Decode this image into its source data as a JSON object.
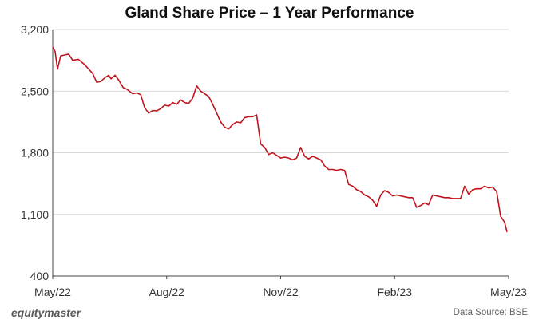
{
  "chart_data": {
    "type": "line",
    "title": "Gland Share Price – 1 Year Performance",
    "xlabel": "",
    "ylabel": "",
    "ylim": [
      400,
      3200
    ],
    "y_ticks": [
      400,
      1100,
      1800,
      2500,
      3200
    ],
    "y_tick_labels": [
      "400",
      "1,100",
      "1,800",
      "2,500",
      "3,200"
    ],
    "x_tick_labels": [
      "May/22",
      "Aug/22",
      "Nov/22",
      "Feb/23",
      "May/23"
    ],
    "grid": true,
    "legend": "none",
    "line_color": "#c0141c",
    "series": [
      {
        "values": [
          [
            0,
            3000
          ],
          [
            0.3,
            2950
          ],
          [
            0.6,
            2750
          ],
          [
            1.0,
            2900
          ],
          [
            2.0,
            2920
          ],
          [
            2.5,
            2850
          ],
          [
            3.2,
            2860
          ],
          [
            4.0,
            2800
          ],
          [
            5.0,
            2700
          ],
          [
            5.5,
            2600
          ],
          [
            6.0,
            2610
          ],
          [
            6.5,
            2650
          ],
          [
            7.0,
            2680
          ],
          [
            7.3,
            2640
          ],
          [
            7.8,
            2680
          ],
          [
            8.3,
            2620
          ],
          [
            8.8,
            2540
          ],
          [
            9.3,
            2520
          ],
          [
            10.0,
            2470
          ],
          [
            10.5,
            2480
          ],
          [
            11.0,
            2460
          ],
          [
            11.5,
            2310
          ],
          [
            12.0,
            2250
          ],
          [
            12.5,
            2280
          ],
          [
            13.0,
            2275
          ],
          [
            13.5,
            2300
          ],
          [
            14.0,
            2340
          ],
          [
            14.5,
            2330
          ],
          [
            15.0,
            2370
          ],
          [
            15.5,
            2350
          ],
          [
            16.0,
            2400
          ],
          [
            16.5,
            2370
          ],
          [
            17.0,
            2360
          ],
          [
            17.5,
            2420
          ],
          [
            18.0,
            2560
          ],
          [
            18.5,
            2500
          ],
          [
            19.0,
            2470
          ],
          [
            19.5,
            2440
          ],
          [
            20.0,
            2350
          ],
          [
            20.5,
            2250
          ],
          [
            21.0,
            2150
          ],
          [
            21.5,
            2090
          ],
          [
            22.0,
            2070
          ],
          [
            22.5,
            2120
          ],
          [
            23.0,
            2150
          ],
          [
            23.5,
            2140
          ],
          [
            24.0,
            2200
          ],
          [
            24.5,
            2210
          ],
          [
            25.0,
            2210
          ],
          [
            25.5,
            2230
          ],
          [
            26.0,
            1900
          ],
          [
            26.5,
            1860
          ],
          [
            27.0,
            1780
          ],
          [
            27.5,
            1800
          ],
          [
            28.0,
            1770
          ],
          [
            28.5,
            1740
          ],
          [
            29.0,
            1750
          ],
          [
            29.5,
            1740
          ],
          [
            30.0,
            1720
          ],
          [
            30.5,
            1740
          ],
          [
            31.0,
            1860
          ],
          [
            31.5,
            1760
          ],
          [
            32.0,
            1730
          ],
          [
            32.5,
            1760
          ],
          [
            33.0,
            1740
          ],
          [
            33.5,
            1720
          ],
          [
            34.0,
            1650
          ],
          [
            34.5,
            1610
          ],
          [
            35.0,
            1610
          ],
          [
            35.5,
            1600
          ],
          [
            36.0,
            1610
          ],
          [
            36.5,
            1600
          ],
          [
            37.0,
            1440
          ],
          [
            37.5,
            1420
          ],
          [
            38.0,
            1380
          ],
          [
            38.5,
            1360
          ],
          [
            39.0,
            1320
          ],
          [
            39.5,
            1300
          ],
          [
            40.0,
            1260
          ],
          [
            40.5,
            1190
          ],
          [
            41.0,
            1320
          ],
          [
            41.5,
            1370
          ],
          [
            42.0,
            1350
          ],
          [
            42.5,
            1310
          ],
          [
            43.0,
            1320
          ],
          [
            43.5,
            1310
          ],
          [
            44.0,
            1300
          ],
          [
            44.5,
            1290
          ],
          [
            45.0,
            1290
          ],
          [
            45.5,
            1180
          ],
          [
            46.0,
            1200
          ],
          [
            46.5,
            1230
          ],
          [
            47.0,
            1210
          ],
          [
            47.5,
            1320
          ],
          [
            48.0,
            1310
          ],
          [
            48.5,
            1300
          ],
          [
            49.0,
            1290
          ],
          [
            49.5,
            1290
          ],
          [
            50.0,
            1280
          ],
          [
            50.5,
            1280
          ],
          [
            51.0,
            1280
          ],
          [
            51.5,
            1420
          ],
          [
            52.0,
            1330
          ],
          [
            52.5,
            1380
          ],
          [
            53.0,
            1390
          ],
          [
            53.5,
            1390
          ],
          [
            54.0,
            1420
          ],
          [
            54.5,
            1400
          ],
          [
            55.0,
            1410
          ],
          [
            55.5,
            1360
          ],
          [
            56.0,
            1080
          ],
          [
            56.5,
            1010
          ],
          [
            56.8,
            900
          ]
        ]
      }
    ],
    "x_range": [
      0,
      57
    ]
  },
  "footer": {
    "brand": "equitymaster",
    "source": "Data Source: BSE"
  }
}
